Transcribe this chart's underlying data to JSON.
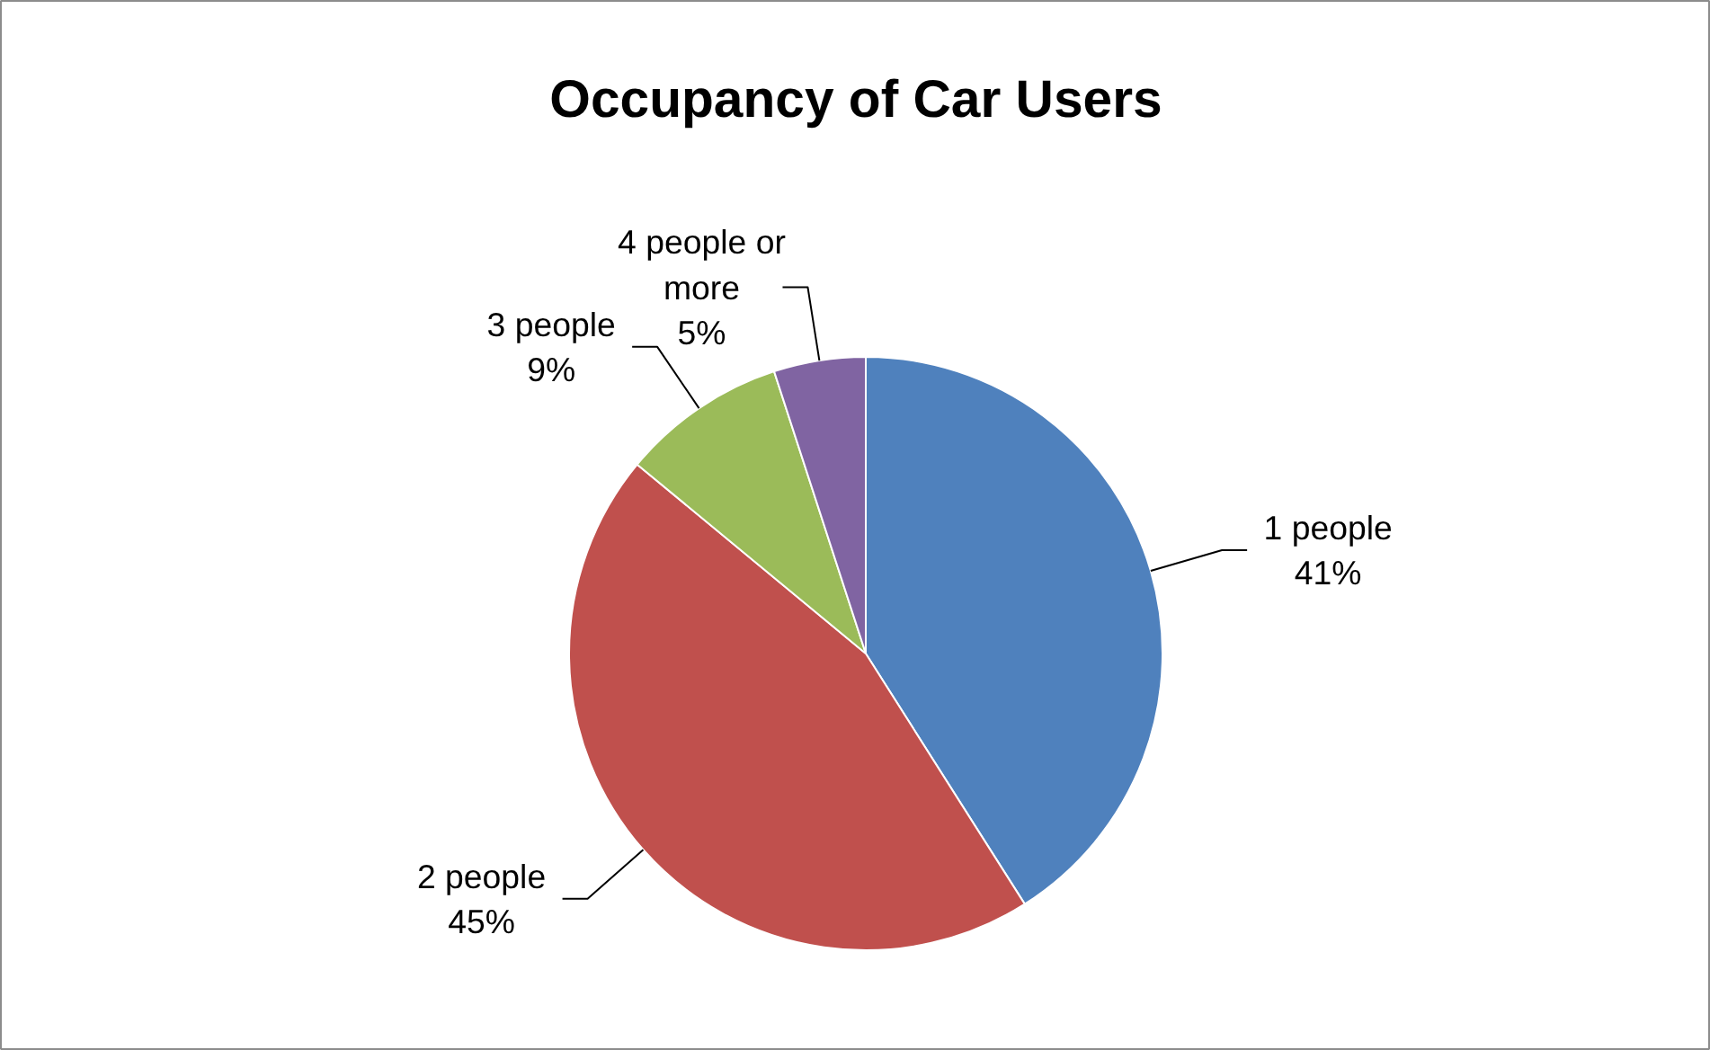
{
  "chart_data": {
    "type": "pie",
    "title": "Occupancy of Car Users",
    "categories": [
      "1 people",
      "2 people",
      "3 people",
      "4 people or more"
    ],
    "values": [
      41,
      45,
      9,
      5
    ],
    "value_labels": [
      "41%",
      "45%",
      "9%",
      "5%"
    ],
    "colors": [
      "#4f81bd",
      "#c0504d",
      "#9bbb59",
      "#8064a2"
    ]
  }
}
